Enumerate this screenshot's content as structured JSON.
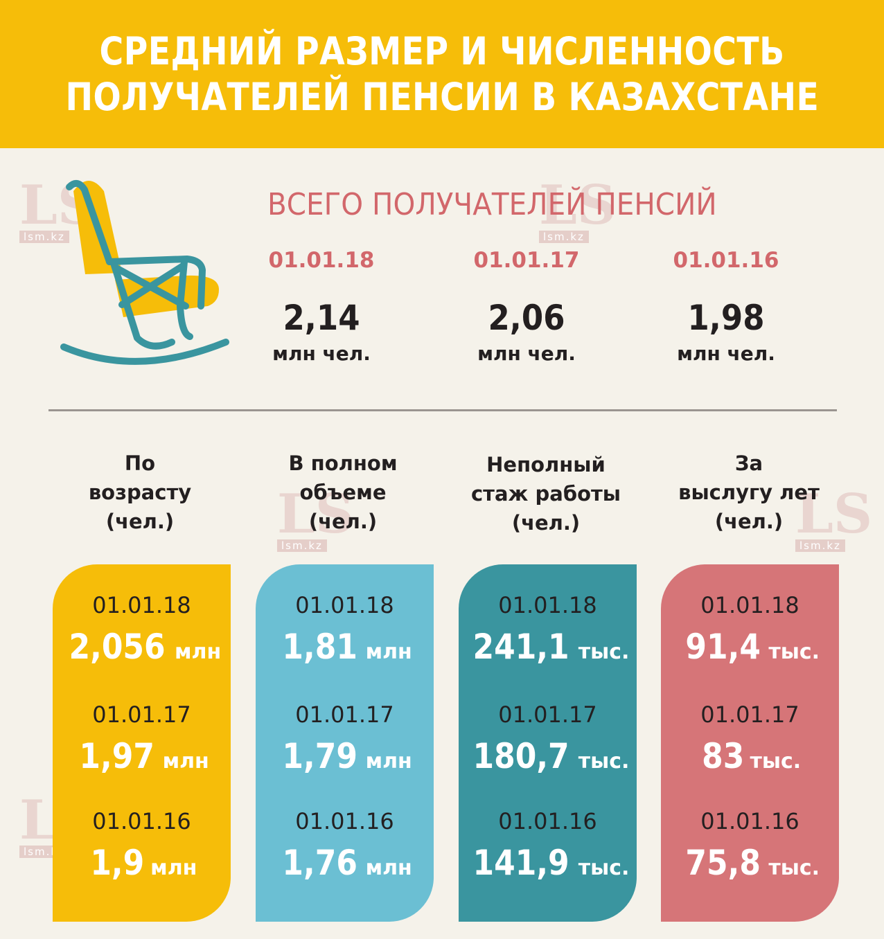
{
  "title": {
    "line1": "СРЕДНИЙ РАЗМЕР И ЧИСЛЕННОСТЬ",
    "line2": "ПОЛУЧАТЕЛЕЙ ПЕНСИИ В КАЗАХСТАНЕ"
  },
  "watermark": {
    "logo": "LS",
    "site": "lsm.kz"
  },
  "colors": {
    "header": "#f6bd09",
    "accent_red": "#d2676b",
    "card_age": "#f6bd09",
    "card_full": "#6bbfd3",
    "card_partial": "#3a959f",
    "card_service": "#d67578",
    "chair_frame": "#3a959f",
    "chair_seat": "#f6bd09"
  },
  "icon": "rocking-chair-icon",
  "chart_data": [
    {
      "type": "table",
      "title": "ВСЕГО ПОЛУЧАТЕЛЕЙ ПЕНСИЙ",
      "categories": [
        "01.01.18",
        "01.01.17",
        "01.01.16"
      ],
      "values": [
        2.14,
        2.06,
        1.98
      ],
      "labels": [
        "2,14",
        "2,06",
        "1,98"
      ],
      "unit": "млн чел."
    },
    {
      "type": "table",
      "categories": [
        "01.01.18",
        "01.01.17",
        "01.01.16"
      ],
      "series": [
        {
          "name": "По\nвозрасту\n(чел.)",
          "color": "#f6bd09",
          "values": [
            2056000,
            1970000,
            1900000
          ],
          "labels": [
            "2,056",
            "1,97",
            "1,9"
          ],
          "units": [
            "млн",
            "млн",
            "млн"
          ]
        },
        {
          "name": "В полном\nобъеме\n(чел.)",
          "color": "#6bbfd3",
          "values": [
            1810000,
            1790000,
            1760000
          ],
          "labels": [
            "1,81",
            "1,79",
            "1,76"
          ],
          "units": [
            "млн",
            "млн",
            "млн"
          ]
        },
        {
          "name": "Неполный\nстаж работы\n(чел.)",
          "color": "#3a959f",
          "values": [
            241100,
            180700,
            141900
          ],
          "labels": [
            "241,1",
            "180,7",
            "141,9"
          ],
          "units": [
            "тыс.",
            "тыс.",
            "тыс."
          ]
        },
        {
          "name": "За\nвыслугу лет\n(чел.)",
          "color": "#d67578",
          "values": [
            91400,
            83000,
            75800
          ],
          "labels": [
            "91,4",
            "83",
            "75,8"
          ],
          "units": [
            "тыс.",
            "тыс.",
            "тыс."
          ]
        }
      ]
    }
  ]
}
